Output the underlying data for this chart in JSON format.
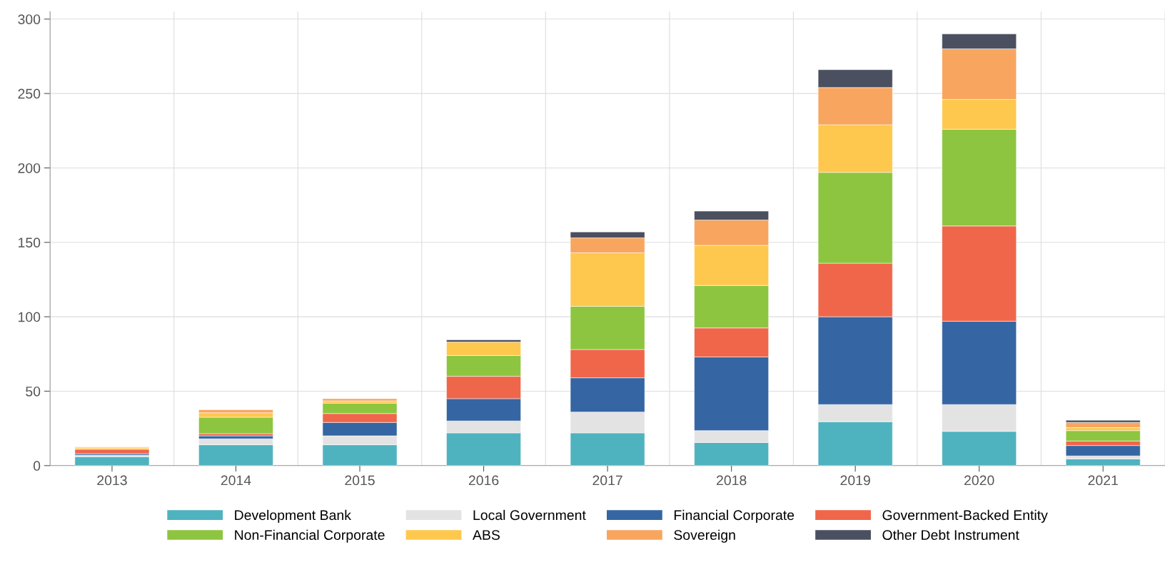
{
  "chart_data": {
    "type": "bar",
    "stacked": true,
    "categories": [
      "2013",
      "2014",
      "2015",
      "2016",
      "2017",
      "2018",
      "2019",
      "2020",
      "2021"
    ],
    "series": [
      {
        "name": "Development Bank",
        "color": "#4fb3bf",
        "values": [
          6,
          14,
          14,
          22,
          22,
          15.5,
          29.5,
          23,
          4.5
        ]
      },
      {
        "name": "Local Government",
        "color": "#e3e3e3",
        "values": [
          1,
          4,
          6,
          8,
          14,
          8,
          11.5,
          18,
          2
        ]
      },
      {
        "name": "Financial Corporate",
        "color": "#3566a3",
        "values": [
          1,
          2,
          9,
          15,
          23,
          49.5,
          59,
          56,
          7
        ]
      },
      {
        "name": "Government-Backed Entity",
        "color": "#f0664a",
        "values": [
          3,
          1.5,
          6,
          15,
          19,
          19.5,
          36,
          64,
          3
        ]
      },
      {
        "name": "Non-Financial Corporate",
        "color": "#8dc540",
        "values": [
          null,
          11,
          7,
          14,
          29,
          28.5,
          61,
          65,
          7
        ]
      },
      {
        "name": "ABS",
        "color": "#fec84e",
        "values": [
          1,
          3,
          1.5,
          9,
          36,
          27,
          32,
          20,
          2
        ]
      },
      {
        "name": "Sovereign",
        "color": "#f8a55f",
        "values": [
          0.5,
          2,
          1.5,
          null,
          10,
          17,
          25,
          34,
          3.5
        ]
      },
      {
        "name": "Other Debt Instrument",
        "color": "#4b5060",
        "values": [
          null,
          null,
          null,
          1.5,
          4,
          6,
          12,
          10,
          1.5
        ]
      }
    ],
    "ylim": [
      0,
      305
    ],
    "yticks": [
      0,
      50,
      100,
      150,
      200,
      250,
      300
    ],
    "grid": true,
    "legend": "bottom"
  }
}
